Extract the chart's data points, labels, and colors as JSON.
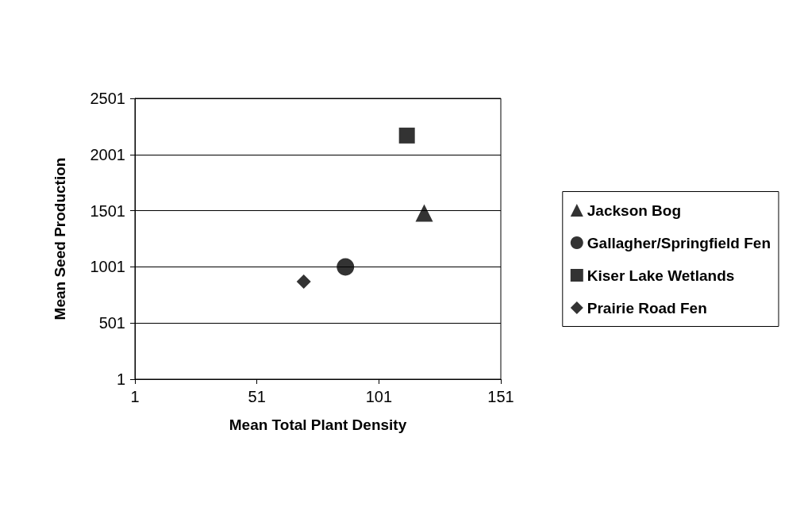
{
  "chart_data": {
    "type": "scatter",
    "xlabel": "Mean Total Plant Density",
    "ylabel": "Mean Seed Production",
    "xlim": [
      1,
      151
    ],
    "xticks": [
      1,
      51,
      101,
      151
    ],
    "ylim": [
      1,
      2501
    ],
    "yticks": [
      1,
      501,
      1001,
      1501,
      2001,
      2501
    ],
    "grid": "y",
    "legend": "right",
    "series": [
      {
        "name": "Jackson Bog",
        "color": "#000000",
        "marker": "triangle",
        "x": [
          119.6
        ],
        "values": [
          1480
        ]
      },
      {
        "name": "Gallagher/Springfield Fen",
        "color": "#000000",
        "marker": "circle",
        "x": [
          87.3
        ],
        "values": [
          1000
        ]
      },
      {
        "name": "Kiser Lake Wetlands",
        "color": "#000000",
        "marker": "square",
        "x": [
          112.5
        ],
        "values": [
          2170
        ]
      },
      {
        "name": "Prairie Road Fen",
        "color": "#000000",
        "marker": "diamond",
        "x": [
          70.2
        ],
        "values": [
          870
        ]
      }
    ]
  }
}
